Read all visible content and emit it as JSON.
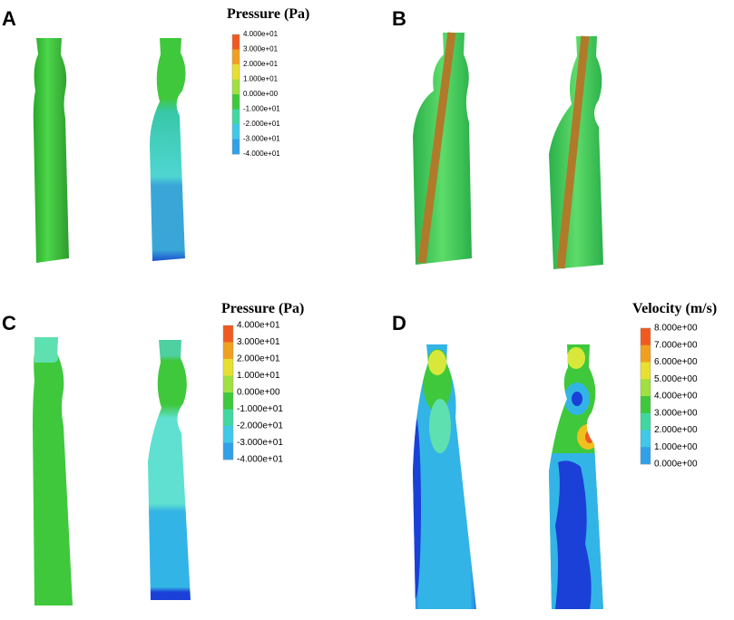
{
  "panels": [
    {
      "label": "A",
      "title": "Pressure (Pa)",
      "colorbar": [
        "4.000e+01",
        "3.000e+01",
        "2.000e+01",
        "1.000e+01",
        "0.000e+00",
        "-1.000e+01",
        "-2.000e+01",
        "-3.000e+01",
        "-4.000e+01"
      ]
    },
    {
      "label": "B"
    },
    {
      "label": "C",
      "title": "Pressure (Pa)",
      "colorbar": [
        "4.000e+01",
        "3.000e+01",
        "2.000e+01",
        "1.000e+01",
        "0.000e+00",
        "-1.000e+01",
        "-2.000e+01",
        "-3.000e+01",
        "-4.000e+01"
      ]
    },
    {
      "label": "D",
      "title": "Velocity (m/s)",
      "colorbar": [
        "8.000e+00",
        "7.000e+00",
        "6.000e+00",
        "5.000e+00",
        "4.000e+00",
        "3.000e+00",
        "2.000e+00",
        "1.000e+00",
        "0.000e+00"
      ]
    }
  ]
}
